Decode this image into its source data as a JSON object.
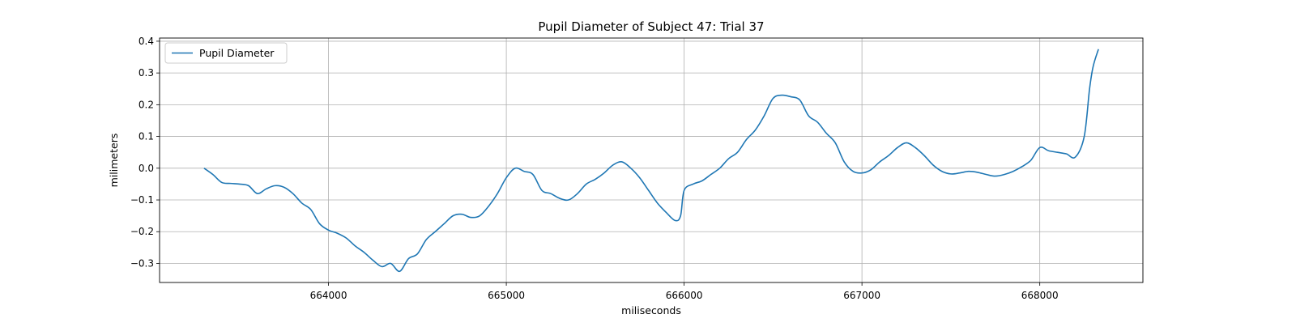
{
  "chart_data": {
    "type": "line",
    "title": "Pupil Diameter of Subject 47: Trial 37",
    "xlabel": "miliseconds",
    "ylabel": "milimeters",
    "xlim": [
      663050,
      668580
    ],
    "ylim": [
      -0.36,
      0.41
    ],
    "xticks": [
      664000,
      665000,
      666000,
      667000,
      668000
    ],
    "xtick_labels": [
      "664000",
      "665000",
      "666000",
      "667000",
      "668000"
    ],
    "yticks": [
      -0.3,
      -0.2,
      -0.1,
      0.0,
      0.1,
      0.2,
      0.3,
      0.4
    ],
    "ytick_labels": [
      "−0.3",
      "−0.2",
      "−0.1",
      "0.0",
      "0.1",
      "0.2",
      "0.3",
      "0.4"
    ],
    "grid": true,
    "legend": {
      "position": "top-left",
      "entries": [
        "Pupil Diameter"
      ]
    },
    "series": [
      {
        "name": "Pupil Diameter",
        "color": "#1f77b4",
        "x": [
          663300,
          663350,
          663400,
          663450,
          663500,
          663550,
          663600,
          663650,
          663700,
          663750,
          663800,
          663850,
          663900,
          663950,
          664000,
          664050,
          664100,
          664150,
          664200,
          664250,
          664300,
          664350,
          664400,
          664450,
          664500,
          664550,
          664600,
          664650,
          664700,
          664750,
          664800,
          664850,
          664900,
          664950,
          665000,
          665050,
          665100,
          665150,
          665200,
          665250,
          665300,
          665350,
          665400,
          665450,
          665500,
          665550,
          665600,
          665650,
          665700,
          665750,
          665800,
          665850,
          665900,
          665950,
          665980,
          666000,
          666050,
          666100,
          666150,
          666200,
          666250,
          666300,
          666350,
          666400,
          666450,
          666500,
          666550,
          666600,
          666650,
          666700,
          666750,
          666800,
          666850,
          666900,
          666950,
          667000,
          667050,
          667100,
          667150,
          667200,
          667250,
          667300,
          667350,
          667400,
          667450,
          667500,
          667550,
          667600,
          667650,
          667700,
          667750,
          667800,
          667850,
          667900,
          667950,
          668000,
          668050,
          668100,
          668150,
          668200,
          668250,
          668280,
          668300,
          668330
        ],
        "y": [
          0.0,
          -0.02,
          -0.045,
          -0.048,
          -0.05,
          -0.055,
          -0.08,
          -0.065,
          -0.055,
          -0.06,
          -0.08,
          -0.11,
          -0.13,
          -0.175,
          -0.195,
          -0.205,
          -0.22,
          -0.245,
          -0.265,
          -0.29,
          -0.31,
          -0.3,
          -0.325,
          -0.285,
          -0.27,
          -0.225,
          -0.2,
          -0.175,
          -0.15,
          -0.145,
          -0.155,
          -0.15,
          -0.12,
          -0.08,
          -0.03,
          0.0,
          -0.01,
          -0.02,
          -0.07,
          -0.08,
          -0.095,
          -0.1,
          -0.08,
          -0.05,
          -0.035,
          -0.015,
          0.01,
          0.02,
          0.0,
          -0.03,
          -0.07,
          -0.11,
          -0.14,
          -0.165,
          -0.15,
          -0.07,
          -0.05,
          -0.04,
          -0.02,
          0.0,
          0.03,
          0.05,
          0.09,
          0.12,
          0.165,
          0.22,
          0.23,
          0.225,
          0.215,
          0.165,
          0.145,
          0.11,
          0.08,
          0.02,
          -0.01,
          -0.015,
          -0.005,
          0.02,
          0.04,
          0.065,
          0.08,
          0.065,
          0.04,
          0.01,
          -0.01,
          -0.018,
          -0.015,
          -0.01,
          -0.013,
          -0.02,
          -0.025,
          -0.02,
          -0.01,
          0.005,
          0.025,
          0.065,
          0.055,
          0.05,
          0.045,
          0.035,
          0.1,
          0.25,
          0.32,
          0.375
        ]
      }
    ]
  }
}
